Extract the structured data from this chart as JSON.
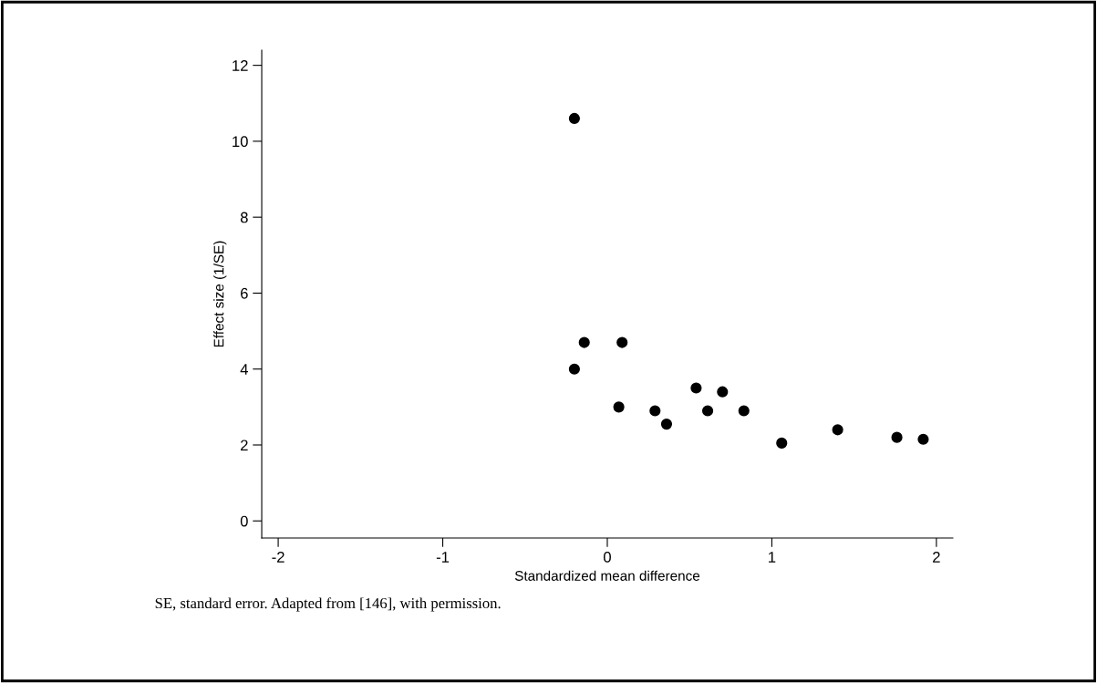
{
  "chart_data": {
    "type": "scatter",
    "xlabel": "Standardized mean difference",
    "ylabel": "Effect size (1/SE)",
    "x": [
      -0.2,
      -0.14,
      0.09,
      -0.2,
      0.07,
      0.29,
      0.36,
      0.54,
      0.7,
      0.61,
      0.83,
      1.06,
      1.4,
      1.76,
      1.92
    ],
    "series": [
      {
        "color": "#000000",
        "values": [
          10.6,
          4.7,
          4.7,
          4.0,
          3.0,
          2.9,
          2.55,
          3.5,
          3.4,
          2.9,
          2.9,
          2.05,
          2.4,
          2.2,
          2.15
        ]
      }
    ],
    "xlim": [
      -2.1,
      2.1
    ],
    "ylim": [
      -0.45,
      12.4
    ],
    "xticks": [
      -2,
      -1,
      0,
      1,
      2
    ],
    "yticks": [
      0,
      2,
      4,
      6,
      8,
      10,
      12
    ],
    "marker": "circle",
    "grid": false,
    "legend": false,
    "annotations": [
      "SE, standard error. Adapted from [146], with permission."
    ]
  }
}
